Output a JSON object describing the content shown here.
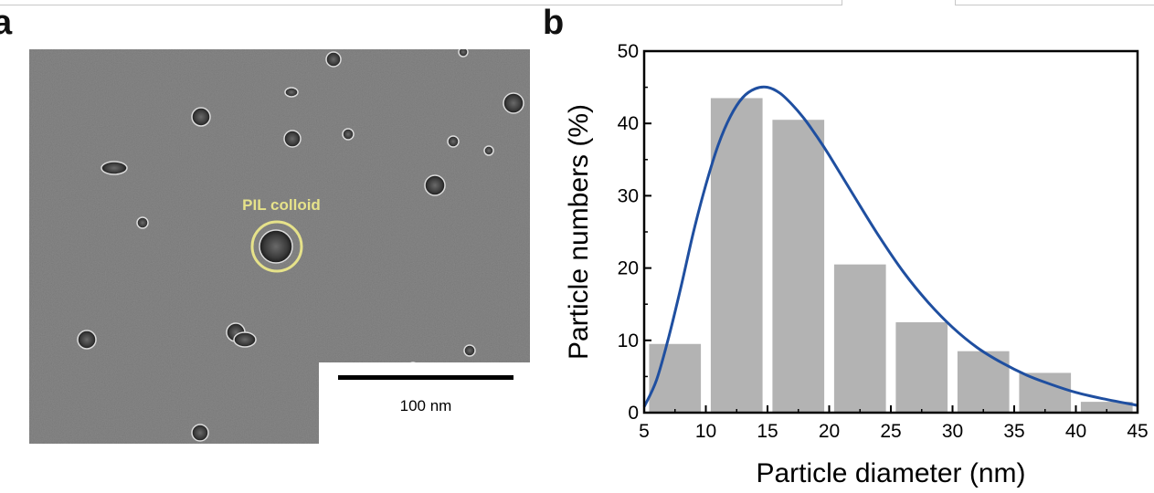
{
  "panels": {
    "a": {
      "label": "a",
      "annotation": "PIL colloid",
      "annotation_color": "#e6e28a",
      "scale_bar_label": "100 nm"
    },
    "b": {
      "label": "b"
    }
  },
  "chart_data": {
    "type": "bar",
    "categories": [
      "5-10",
      "10-15",
      "15-20",
      "20-25",
      "25-30",
      "30-35",
      "35-40",
      "40-45"
    ],
    "bin_edges": [
      5,
      10,
      15,
      20,
      25,
      30,
      35,
      40,
      45
    ],
    "values": [
      9.5,
      43.5,
      40.5,
      20.5,
      12.5,
      8.5,
      5.5,
      1.5
    ],
    "bar_color": "#b3b3b3",
    "fit_curve": {
      "color": "#1f4fa0",
      "x": [
        5,
        6,
        7,
        8,
        9,
        10,
        11,
        12,
        13,
        14,
        15,
        16,
        17,
        18,
        19,
        20,
        22,
        24,
        26,
        28,
        30,
        32,
        34,
        36,
        38,
        40,
        42,
        45
      ],
      "y": [
        0.8,
        4.5,
        10.5,
        17.5,
        25,
        31.5,
        37,
        41,
        43.6,
        44.8,
        45,
        44.2,
        42.6,
        40.6,
        38.2,
        35.6,
        30,
        24.5,
        19.5,
        15.3,
        11.8,
        9,
        6.9,
        5.2,
        3.9,
        2.8,
        2,
        1
      ]
    },
    "xlabel": "Particle diameter (nm)",
    "ylabel": "Particle numbers (%)",
    "xlim": [
      5,
      45
    ],
    "ylim": [
      0,
      50
    ],
    "xticks": [
      5,
      10,
      15,
      20,
      25,
      30,
      35,
      40,
      45
    ],
    "yticks": [
      0,
      10,
      20,
      30,
      40,
      50
    ],
    "grid": false,
    "legend": "none"
  }
}
